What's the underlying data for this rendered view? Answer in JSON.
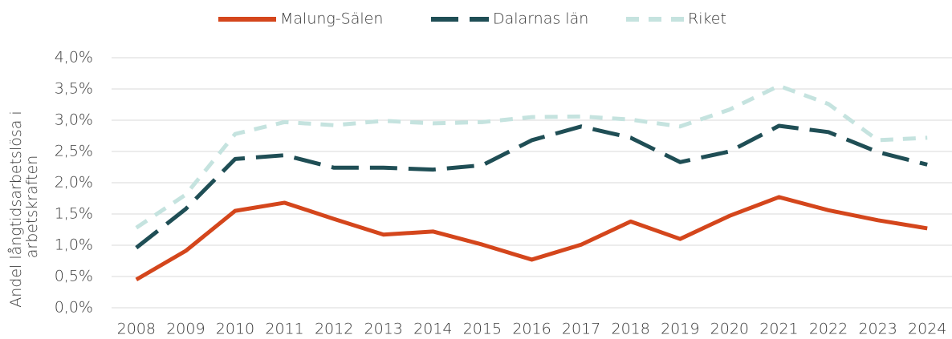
{
  "chart_data": {
    "type": "line",
    "categories": [
      "2008",
      "2009",
      "2010",
      "2011",
      "2012",
      "2013",
      "2014",
      "2015",
      "2016",
      "2017",
      "2018",
      "2019",
      "2020",
      "2021",
      "2022",
      "2023",
      "2024"
    ],
    "series": [
      {
        "name": "Malung-Sälen",
        "color": "#d4461c",
        "dash": "solid",
        "values": [
          0.45,
          0.91,
          1.55,
          1.68,
          1.42,
          1.17,
          1.22,
          1.01,
          0.77,
          1.01,
          1.38,
          1.1,
          1.47,
          1.77,
          1.56,
          1.4,
          1.27
        ]
      },
      {
        "name": "Dalarnas län",
        "color": "#1f4e55",
        "dash": "long",
        "values": [
          0.96,
          1.58,
          2.38,
          2.44,
          2.24,
          2.24,
          2.21,
          2.28,
          2.68,
          2.9,
          2.72,
          2.33,
          2.5,
          2.91,
          2.81,
          2.49,
          2.29
        ]
      },
      {
        "name": "Riket",
        "color": "#c5e3df",
        "dash": "short",
        "values": [
          1.28,
          1.81,
          2.78,
          2.97,
          2.92,
          2.99,
          2.95,
          2.97,
          3.05,
          3.06,
          3.01,
          2.9,
          3.17,
          3.55,
          3.26,
          2.68,
          2.72
        ]
      }
    ],
    "ylabel": [
      "Andel långtidsarbetslösa i",
      "arbetskraften"
    ],
    "ylim": [
      0,
      4
    ],
    "yticks": [
      {
        "value": 0,
        "label": "0,0%"
      },
      {
        "value": 0.5,
        "label": "0,5%"
      },
      {
        "value": 1,
        "label": "1,0%"
      },
      {
        "value": 1.5,
        "label": "1,5%"
      },
      {
        "value": 2,
        "label": "2,0%"
      },
      {
        "value": 2.5,
        "label": "2,5%"
      },
      {
        "value": 3,
        "label": "3,0%"
      },
      {
        "value": 3.5,
        "label": "3,5%"
      },
      {
        "value": 4,
        "label": "4,0%"
      }
    ],
    "grid": true,
    "legend": "top"
  }
}
